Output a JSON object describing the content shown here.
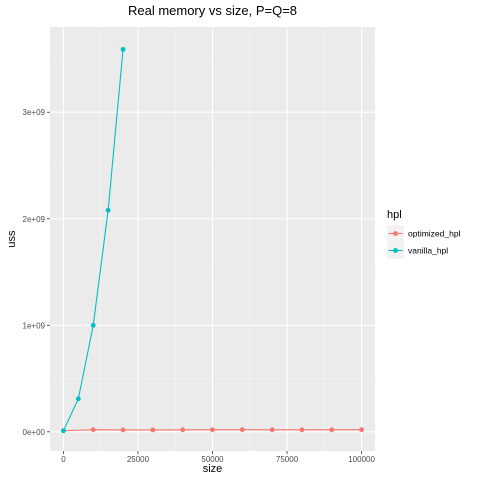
{
  "chart_data": {
    "type": "line",
    "title": "Real memory vs size, P=Q=8",
    "xlabel": "size",
    "ylabel": "uss",
    "xlim": [
      -4500,
      104500
    ],
    "ylim": [
      -180000000,
      3800000000
    ],
    "x_ticks": [
      0,
      25000,
      50000,
      75000,
      100000
    ],
    "x_tick_labels": [
      "0",
      "25000",
      "50000",
      "75000",
      "100000"
    ],
    "y_ticks": [
      0,
      1000000000,
      2000000000,
      3000000000
    ],
    "y_tick_labels": [
      "0e+00",
      "1e+09",
      "2e+09",
      "3e+09"
    ],
    "grid": true,
    "legend": {
      "title": "hpl",
      "position": "right"
    },
    "series": [
      {
        "name": "optimized_hpl",
        "color": "#F8766D",
        "x": [
          0,
          10000,
          20000,
          30000,
          40000,
          50000,
          60000,
          70000,
          80000,
          90000,
          100000
        ],
        "y": [
          10000000,
          20000000,
          18000000,
          18000000,
          19000000,
          19000000,
          20000000,
          19000000,
          19000000,
          19000000,
          20000000
        ]
      },
      {
        "name": "vanilla_hpl",
        "color": "#00BFC4",
        "x": [
          0,
          5000,
          10000,
          15000,
          20000
        ],
        "y": [
          10000000,
          310000000,
          1000000000,
          2080000000,
          3590000000
        ]
      }
    ]
  }
}
